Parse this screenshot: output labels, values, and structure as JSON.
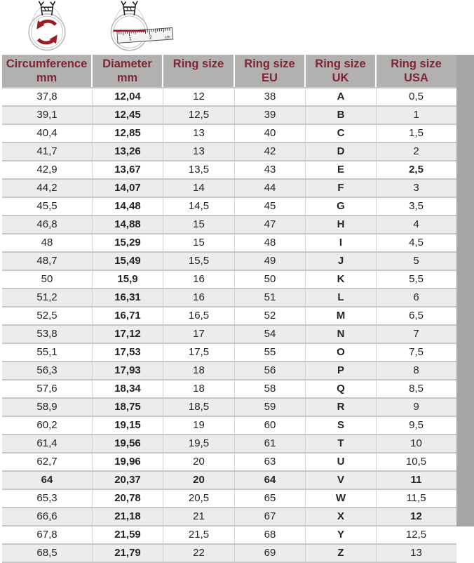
{
  "icons": {
    "circumference_icon": "ring-with-rotation-arrows",
    "diameter_icon": "ring-with-ruler-measuring-diameter",
    "accent_color": "#9b1b20",
    "ruler_labels": {
      "one": "1",
      "two": "2",
      "unit": "cm"
    }
  },
  "table": {
    "header_bg": "#b3b0b0",
    "header_text_color": "#7f2636",
    "stripe_color": "#ececec",
    "columns": [
      {
        "label": "Circumference",
        "sub": "mm"
      },
      {
        "label": "Diameter",
        "sub": "mm"
      },
      {
        "label": "Ring size",
        "sub": ""
      },
      {
        "label": "Ring size",
        "sub": "EU"
      },
      {
        "label": "Ring size",
        "sub": "UK"
      },
      {
        "label": "Ring size",
        "sub": "USA"
      }
    ],
    "rows": [
      [
        "37,8",
        "12,04",
        "12",
        "38",
        "A",
        "0,5"
      ],
      [
        "39,1",
        "12,45",
        "12,5",
        "39",
        "B",
        "1"
      ],
      [
        "40,4",
        "12,85",
        "13",
        "40",
        "C",
        "1,5"
      ],
      [
        "41,7",
        "13,26",
        "13",
        "42",
        "D",
        "2"
      ],
      [
        "42,9",
        "13,67",
        "13,5",
        "43",
        "E",
        "2,5"
      ],
      [
        "44,2",
        "14,07",
        "14",
        "44",
        "F",
        "3"
      ],
      [
        "45,5",
        "14,48",
        "14,5",
        "45",
        "G",
        "3,5"
      ],
      [
        "46,8",
        "14,88",
        "15",
        "47",
        "H",
        "4"
      ],
      [
        "48",
        "15,29",
        "15",
        "48",
        "I",
        "4,5"
      ],
      [
        "48,7",
        "15,49",
        "15,5",
        "49",
        "J",
        "5"
      ],
      [
        "50",
        "15,9",
        "16",
        "50",
        "K",
        "5,5"
      ],
      [
        "51,2",
        "16,31",
        "16",
        "51",
        "L",
        "6"
      ],
      [
        "52,5",
        "16,71",
        "16,5",
        "52",
        "M",
        "6,5"
      ],
      [
        "53,8",
        "17,12",
        "17",
        "54",
        "N",
        "7"
      ],
      [
        "55,1",
        "17,53",
        "17,5",
        "55",
        "O",
        "7,5"
      ],
      [
        "56,3",
        "17,93",
        "18",
        "56",
        "P",
        "8"
      ],
      [
        "57,6",
        "18,34",
        "18",
        "58",
        "Q",
        "8,5"
      ],
      [
        "58,9",
        "18,75",
        "18,5",
        "59",
        "R",
        "9"
      ],
      [
        "60,2",
        "19,15",
        "19",
        "60",
        "S",
        "9,5"
      ],
      [
        "61,4",
        "19,56",
        "19,5",
        "61",
        "T",
        "10"
      ],
      [
        "62,7",
        "19,96",
        "20",
        "63",
        "U",
        "10,5"
      ],
      [
        "64",
        "20,37",
        "20",
        "64",
        "V",
        "11"
      ],
      [
        "65,3",
        "20,78",
        "20,5",
        "65",
        "W",
        "11,5"
      ],
      [
        "66,6",
        "21,18",
        "21",
        "67",
        "X",
        "12"
      ],
      [
        "67,8",
        "21,59",
        "21,5",
        "68",
        "Y",
        "12,5"
      ],
      [
        "68,5",
        "21,79",
        "22",
        "69",
        "Z",
        "13"
      ]
    ],
    "bold_columns": [
      1,
      4
    ],
    "bold_cells": [
      [
        21,
        0
      ],
      [
        21,
        2
      ],
      [
        21,
        3
      ],
      [
        21,
        5
      ],
      [
        4,
        5
      ],
      [
        23,
        5
      ]
    ]
  }
}
